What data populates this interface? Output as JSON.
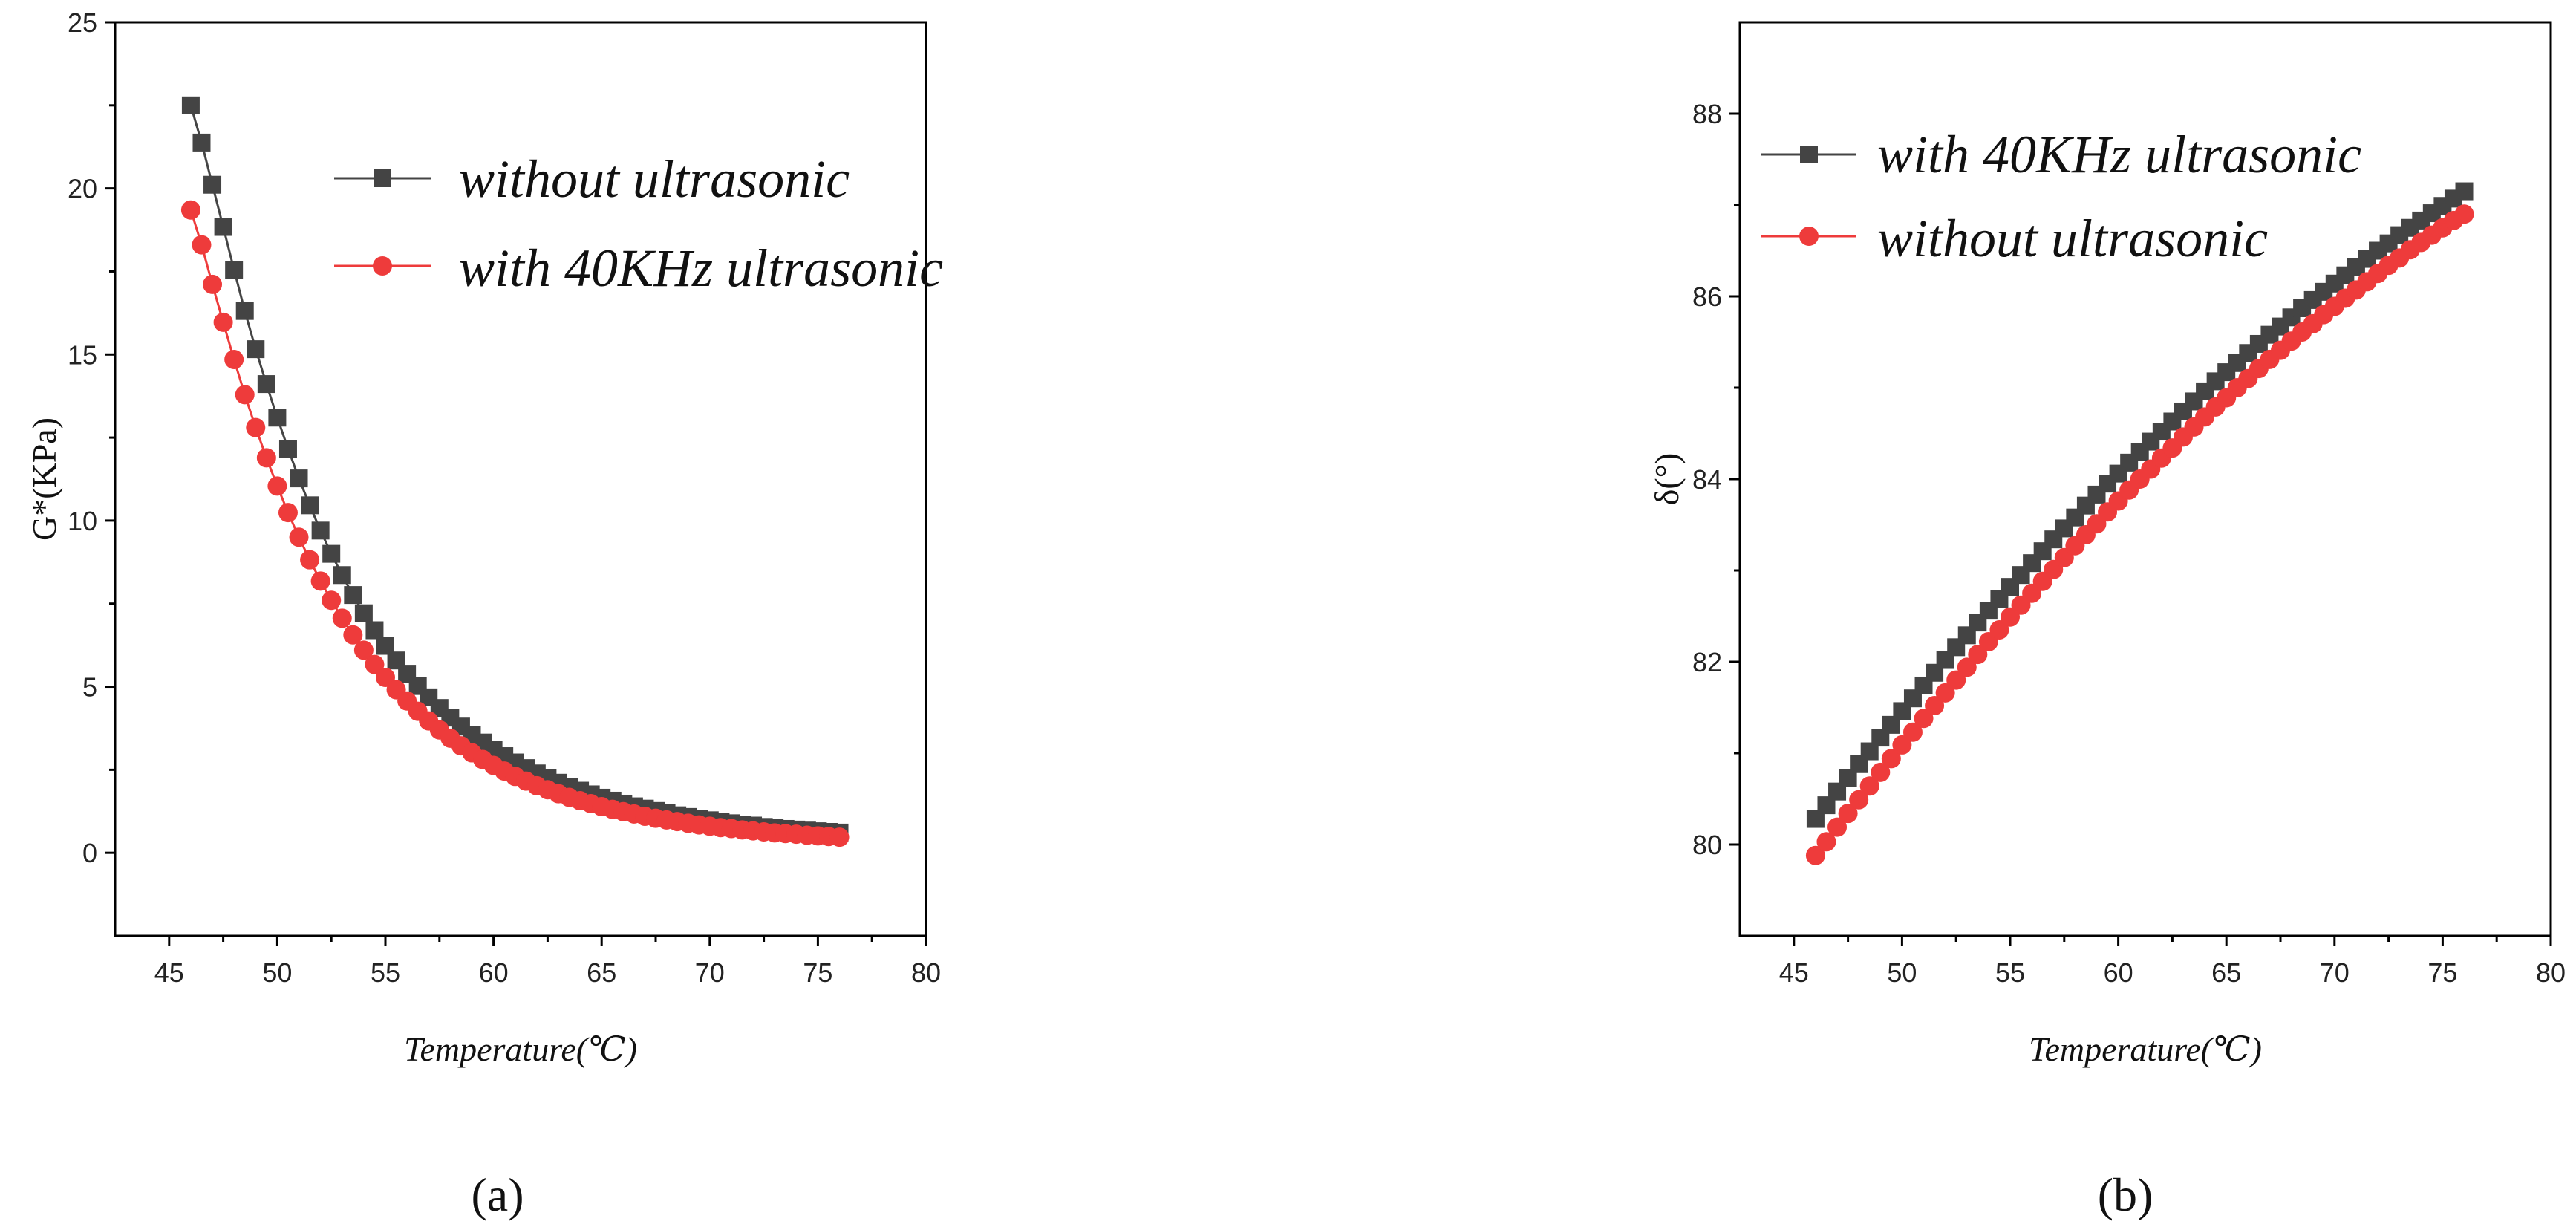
{
  "chart_data": [
    {
      "type": "line",
      "panel_label": "(a)",
      "xlabel": "Temperature(℃)",
      "ylabel": "G*(KPa)",
      "xlim": [
        42.5,
        80
      ],
      "ylim": [
        -2.5,
        25
      ],
      "xticks": [
        45,
        50,
        55,
        60,
        65,
        70,
        75,
        80
      ],
      "yticks": [
        0,
        5,
        10,
        15,
        20,
        25
      ],
      "grid": false,
      "legend_position": "top-right",
      "x": [
        46,
        46.5,
        47,
        47.5,
        48,
        48.5,
        49,
        49.5,
        50,
        50.5,
        51,
        51.5,
        52,
        52.5,
        53,
        53.5,
        54,
        54.5,
        55,
        55.5,
        56,
        56.5,
        57,
        57.5,
        58,
        58.5,
        59,
        59.5,
        60,
        60.5,
        61,
        61.5,
        62,
        62.5,
        63,
        63.5,
        64,
        64.5,
        65,
        65.5,
        66,
        66.5,
        67,
        67.5,
        68,
        68.5,
        69,
        69.5,
        70,
        70.5,
        71,
        71.5,
        72,
        72.5,
        73,
        73.5,
        74,
        74.5,
        75,
        75.5,
        76
      ],
      "series": [
        {
          "name": "without ultrasonic",
          "marker": "square",
          "color": "#444444",
          "values": [
            22.5,
            21.38,
            20.11,
            18.84,
            17.55,
            16.31,
            15.16,
            14.11,
            13.1,
            12.16,
            11.27,
            10.46,
            9.7,
            9.0,
            8.36,
            7.76,
            7.21,
            6.7,
            6.23,
            5.79,
            5.39,
            5.02,
            4.68,
            4.36,
            4.07,
            3.8,
            3.55,
            3.32,
            3.1,
            2.91,
            2.72,
            2.55,
            2.39,
            2.25,
            2.11,
            1.99,
            1.87,
            1.76,
            1.66,
            1.57,
            1.48,
            1.4,
            1.33,
            1.26,
            1.19,
            1.13,
            1.08,
            1.03,
            0.98,
            0.93,
            0.89,
            0.85,
            0.82,
            0.78,
            0.75,
            0.72,
            0.7,
            0.67,
            0.65,
            0.63,
            0.61
          ]
        },
        {
          "name": "with 40KHz ultrasonic",
          "marker": "circle",
          "color": "#ee3b3b",
          "values": [
            19.35,
            18.3,
            17.11,
            15.97,
            14.85,
            13.79,
            12.8,
            11.89,
            11.04,
            10.24,
            9.5,
            8.82,
            8.18,
            7.6,
            7.06,
            6.56,
            6.1,
            5.67,
            5.28,
            4.91,
            4.57,
            4.26,
            3.97,
            3.7,
            3.45,
            3.22,
            3.01,
            2.81,
            2.63,
            2.46,
            2.3,
            2.16,
            2.02,
            1.9,
            1.78,
            1.67,
            1.57,
            1.48,
            1.39,
            1.31,
            1.24,
            1.17,
            1.1,
            1.04,
            0.99,
            0.94,
            0.89,
            0.84,
            0.8,
            0.76,
            0.73,
            0.69,
            0.66,
            0.63,
            0.6,
            0.58,
            0.56,
            0.53,
            0.51,
            0.49,
            0.47
          ]
        }
      ]
    },
    {
      "type": "line",
      "panel_label": "(b)",
      "xlabel": "Temperature(℃)",
      "ylabel": "δ(°)",
      "xlim": [
        42.5,
        80
      ],
      "ylim": [
        79,
        89
      ],
      "xticks": [
        45,
        50,
        55,
        60,
        65,
        70,
        75,
        80
      ],
      "yticks": [
        80,
        82,
        84,
        86,
        88
      ],
      "grid": false,
      "legend_position": "top-left",
      "x": [
        46,
        46.5,
        47,
        47.5,
        48,
        48.5,
        49,
        49.5,
        50,
        50.5,
        51,
        51.5,
        52,
        52.5,
        53,
        53.5,
        54,
        54.5,
        55,
        55.5,
        56,
        56.5,
        57,
        57.5,
        58,
        58.5,
        59,
        59.5,
        60,
        60.5,
        61,
        61.5,
        62,
        62.5,
        63,
        63.5,
        64,
        64.5,
        65,
        65.5,
        66,
        66.5,
        67,
        67.5,
        68,
        68.5,
        69,
        69.5,
        70,
        70.5,
        71,
        71.5,
        72,
        72.5,
        73,
        73.5,
        74,
        74.5,
        75,
        75.5,
        76
      ],
      "series": [
        {
          "name": "with 40KHz ultrasonic",
          "marker": "square",
          "color": "#444444",
          "values": [
            80.28,
            80.43,
            80.58,
            80.73,
            80.88,
            81.02,
            81.17,
            81.31,
            81.46,
            81.6,
            81.74,
            81.88,
            82.02,
            82.16,
            82.29,
            82.43,
            82.56,
            82.69,
            82.82,
            82.95,
            83.08,
            83.21,
            83.34,
            83.46,
            83.58,
            83.71,
            83.83,
            83.95,
            84.06,
            84.18,
            84.3,
            84.41,
            84.52,
            84.63,
            84.74,
            84.85,
            84.96,
            85.07,
            85.17,
            85.27,
            85.38,
            85.48,
            85.58,
            85.67,
            85.77,
            85.87,
            85.96,
            86.05,
            86.14,
            86.23,
            86.32,
            86.41,
            86.5,
            86.58,
            86.67,
            86.75,
            86.83,
            86.91,
            86.99,
            87.07,
            87.15
          ]
        },
        {
          "name": "without ultrasonic",
          "marker": "circle",
          "color": "#ee3b3b",
          "values": [
            79.88,
            80.03,
            80.19,
            80.34,
            80.49,
            80.64,
            80.79,
            80.94,
            81.09,
            81.23,
            81.38,
            81.52,
            81.66,
            81.8,
            81.94,
            82.08,
            82.22,
            82.35,
            82.49,
            82.62,
            82.75,
            82.88,
            83.01,
            83.14,
            83.27,
            83.39,
            83.51,
            83.64,
            83.76,
            83.88,
            84.0,
            84.11,
            84.23,
            84.34,
            84.46,
            84.57,
            84.68,
            84.79,
            84.89,
            85.0,
            85.1,
            85.21,
            85.31,
            85.41,
            85.51,
            85.61,
            85.7,
            85.8,
            85.89,
            85.98,
            86.07,
            86.16,
            86.25,
            86.34,
            86.42,
            86.51,
            86.59,
            86.67,
            86.75,
            86.83,
            86.9
          ]
        }
      ]
    }
  ]
}
